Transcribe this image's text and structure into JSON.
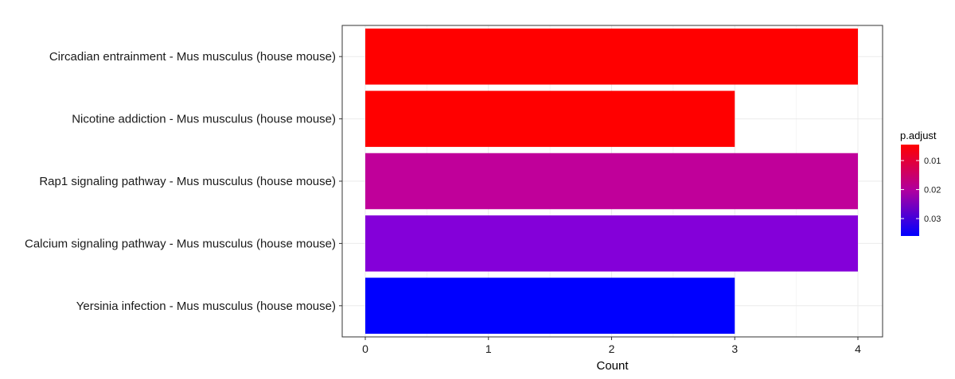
{
  "chart_data": {
    "type": "bar",
    "orientation": "horizontal",
    "categories": [
      "Circadian entrainment - Mus musculus (house mouse)",
      "Nicotine addiction - Mus musculus (house mouse)",
      "Rap1 signaling pathway - Mus musculus (house mouse)",
      "Calcium signaling pathway - Mus musculus (house mouse)",
      "Yersinia infection - Mus musculus (house mouse)"
    ],
    "values": [
      4,
      3,
      4,
      4,
      3
    ],
    "p_adjust": [
      0.006,
      0.006,
      0.015,
      0.026,
      0.036
    ],
    "bar_colors": [
      "#ff0000",
      "#ff0000",
      "#c0009a",
      "#8400d9",
      "#0000ff"
    ],
    "xlabel": "Count",
    "ylabel": "",
    "xlim": [
      0,
      4.2
    ],
    "x_ticks": [
      0,
      1,
      2,
      3,
      4
    ],
    "grid": true,
    "legend": {
      "title": "p.adjust",
      "placement": "right",
      "type": "colorbar",
      "range": [
        0.0045,
        0.036
      ],
      "ticks": [
        0.01,
        0.02,
        0.03
      ],
      "tick_labels": [
        "0.01",
        "0.02",
        "0.03"
      ],
      "low_color": "#ff0000",
      "high_color": "#0000ff"
    }
  }
}
